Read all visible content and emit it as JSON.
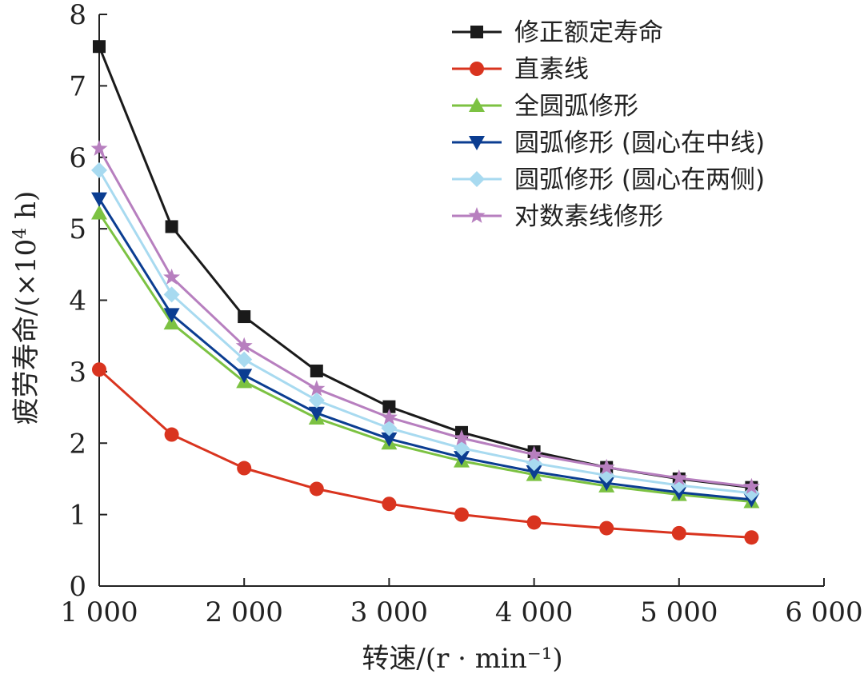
{
  "chart_data": {
    "type": "line",
    "title": "",
    "xlabel": "转速/(r · min⁻¹)",
    "ylabel_main": "疲劳寿命/(×10",
    "ylabel_sup": "4",
    "ylabel_tail": " h)",
    "xlim": [
      1000,
      6000
    ],
    "ylim": [
      0,
      8
    ],
    "xticks": [
      1000,
      2000,
      3000,
      4000,
      5000,
      6000
    ],
    "xtick_labels": [
      "1 000",
      "2 000",
      "3 000",
      "4 000",
      "5 000",
      "6 000"
    ],
    "yticks": [
      0,
      1,
      2,
      3,
      4,
      5,
      6,
      7,
      8
    ],
    "ytick_labels": [
      "0",
      "1",
      "2",
      "3",
      "4",
      "5",
      "6",
      "7",
      "8"
    ],
    "grid": false,
    "legend_position": "top-right",
    "x": [
      1000,
      1500,
      2000,
      2500,
      3000,
      3500,
      4000,
      4500,
      5000,
      5500
    ],
    "series": [
      {
        "name": "修正额定寿命",
        "marker": "square",
        "color": "#1a1a1a",
        "values": [
          7.55,
          5.03,
          3.77,
          3.01,
          2.51,
          2.15,
          1.88,
          1.66,
          1.5,
          1.38
        ]
      },
      {
        "name": "直素线",
        "marker": "circle",
        "color": "#d9341f",
        "values": [
          3.03,
          2.12,
          1.65,
          1.36,
          1.15,
          1.0,
          0.89,
          0.81,
          0.74,
          0.68
        ]
      },
      {
        "name": "全圆弧修形",
        "marker": "triangle-up",
        "color": "#7cc242",
        "values": [
          5.22,
          3.68,
          2.86,
          2.35,
          2.0,
          1.75,
          1.56,
          1.4,
          1.28,
          1.18
        ]
      },
      {
        "name": "圆弧修形 (圆心在中线)",
        "marker": "triangle-down",
        "color": "#0b3d91",
        "values": [
          5.42,
          3.8,
          2.95,
          2.42,
          2.06,
          1.8,
          1.6,
          1.44,
          1.31,
          1.21
        ]
      },
      {
        "name": "圆弧修形 (圆心在两侧)",
        "marker": "diamond",
        "color": "#a8daf0",
        "values": [
          5.82,
          4.08,
          3.17,
          2.6,
          2.21,
          1.93,
          1.72,
          1.55,
          1.41,
          1.3
        ]
      },
      {
        "name": "对数素线修形",
        "marker": "star",
        "color": "#b77fbf",
        "values": [
          6.12,
          4.32,
          3.36,
          2.76,
          2.36,
          2.07,
          1.84,
          1.66,
          1.51,
          1.39
        ]
      }
    ]
  }
}
